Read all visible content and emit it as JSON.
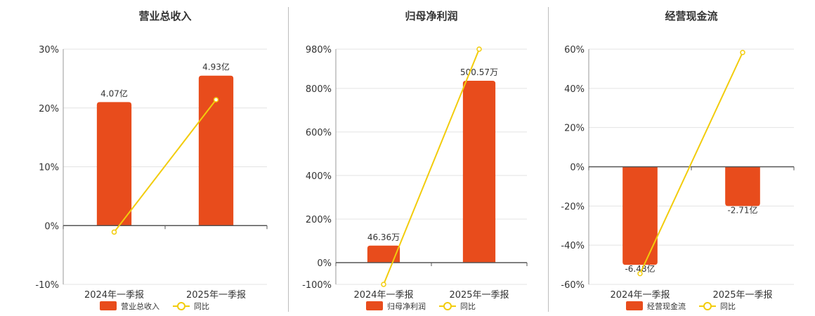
{
  "colors": {
    "bar": "#e84c1c",
    "line": "#f2cc0c",
    "axis": "#555555",
    "grid": "#e3e3e3",
    "text": "#333333"
  },
  "chart_data": [
    {
      "type": "bar",
      "title": "营业总收入",
      "categories": [
        "2024年一季报",
        "2025年一季报"
      ],
      "series": [
        {
          "name": "营业总收入",
          "type": "bar",
          "values": [
            21,
            25.5
          ],
          "labels": [
            "4.07亿",
            "4.93亿"
          ]
        },
        {
          "name": "同比",
          "type": "line",
          "values": [
            -1.1,
            21.4
          ]
        }
      ],
      "yticks": [
        30,
        20,
        10,
        0,
        -10
      ],
      "ytick_labels": [
        "30%",
        "20%",
        "10%",
        "0%",
        "-10%"
      ],
      "ylim": [
        -10,
        30
      ],
      "legend_position": "bottom",
      "grid": true
    },
    {
      "type": "bar",
      "title": "归母净利润",
      "categories": [
        "2024年一季报",
        "2025年一季报"
      ],
      "series": [
        {
          "name": "归母净利润",
          "type": "bar",
          "values": [
            78,
            835
          ],
          "labels": [
            "46.36万",
            "500.57万"
          ]
        },
        {
          "name": "同比",
          "type": "line",
          "values": [
            -100,
            980
          ]
        }
      ],
      "yticks": [
        980,
        800,
        600,
        400,
        200,
        0,
        -100
      ],
      "ytick_labels": [
        "980%",
        "800%",
        "600%",
        "400%",
        "200%",
        "0%",
        "-100%"
      ],
      "ylim": [
        -100,
        980
      ],
      "legend_position": "bottom",
      "grid": true
    },
    {
      "type": "bar",
      "title": "经营现金流",
      "categories": [
        "2024年一季报",
        "2025年一季报"
      ],
      "series": [
        {
          "name": "经营现金流",
          "type": "bar",
          "values": [
            -50,
            -20
          ],
          "labels": [
            "-6.48亿",
            "-2.71亿"
          ]
        },
        {
          "name": "同比",
          "type": "line",
          "values": [
            -54.5,
            58.3
          ]
        }
      ],
      "yticks": [
        60,
        40,
        20,
        0,
        -20,
        -40,
        -60
      ],
      "ytick_labels": [
        "60%",
        "40%",
        "20%",
        "0%",
        "-20%",
        "-40%",
        "-60%"
      ],
      "ylim": [
        -60,
        60
      ],
      "legend_position": "bottom",
      "grid": true
    }
  ]
}
